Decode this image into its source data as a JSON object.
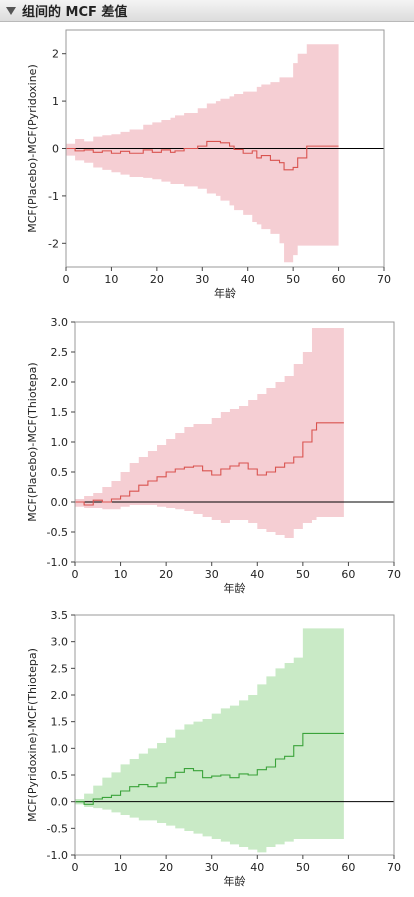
{
  "outline": {
    "title": "组间的 MCF 差值",
    "disclosure_icon": "triangle-down-icon"
  },
  "chart_data": [
    {
      "type": "line",
      "title": "",
      "xlabel": "年龄",
      "ylabel": "MCF(Placebo)-MCF(Pyridoxine)",
      "xlim": [
        0,
        70
      ],
      "ylim": [
        -2.5,
        2.5
      ],
      "xticks": [
        0,
        10,
        20,
        30,
        40,
        50,
        60,
        70
      ],
      "yticks": [
        -2,
        -1,
        0,
        1,
        2
      ],
      "grid": false,
      "reference_line": 0,
      "colors": {
        "line": "#d9534f",
        "band": "#f5ced3",
        "ref": "#000000"
      },
      "series": [
        {
          "x": [
            0,
            2,
            4,
            6,
            8,
            10,
            12,
            14,
            17,
            19,
            21,
            23,
            24,
            26,
            29,
            31,
            33,
            34,
            36,
            37,
            39,
            41,
            42,
            43,
            45,
            47,
            48,
            50,
            51,
            53,
            60
          ],
          "y": [
            0.0,
            -0.05,
            -0.03,
            -0.08,
            -0.05,
            -0.1,
            -0.06,
            -0.1,
            -0.03,
            -0.08,
            -0.03,
            -0.08,
            -0.05,
            0.0,
            0.05,
            0.15,
            0.15,
            0.12,
            0.05,
            -0.02,
            -0.1,
            -0.05,
            -0.2,
            -0.15,
            -0.25,
            -0.3,
            -0.45,
            -0.4,
            -0.2,
            0.05,
            0.05
          ],
          "lower": [
            -0.15,
            -0.25,
            -0.3,
            -0.4,
            -0.45,
            -0.5,
            -0.55,
            -0.6,
            -0.62,
            -0.65,
            -0.7,
            -0.75,
            -0.75,
            -0.8,
            -0.85,
            -0.95,
            -1.0,
            -1.1,
            -1.2,
            -1.3,
            -1.4,
            -1.55,
            -1.6,
            -1.7,
            -1.8,
            -2.0,
            -2.4,
            -2.25,
            -2.05,
            -2.05,
            -2.05
          ],
          "upper": [
            0.1,
            0.2,
            0.15,
            0.25,
            0.28,
            0.3,
            0.35,
            0.4,
            0.5,
            0.55,
            0.6,
            0.65,
            0.7,
            0.75,
            0.85,
            0.95,
            1.0,
            1.05,
            1.1,
            1.15,
            1.2,
            1.2,
            1.3,
            1.35,
            1.4,
            1.5,
            1.5,
            1.8,
            2.0,
            2.2,
            2.2
          ]
        }
      ]
    },
    {
      "type": "line",
      "title": "",
      "xlabel": "年龄",
      "ylabel": "MCF(Placebo)-MCF(Thiotepa)",
      "xlim": [
        0,
        70
      ],
      "ylim": [
        -1.0,
        3.0
      ],
      "xticks": [
        0,
        10,
        20,
        30,
        40,
        50,
        60,
        70
      ],
      "yticks": [
        -1.0,
        -0.5,
        0.0,
        0.5,
        1.0,
        1.5,
        2.0,
        2.5,
        3.0
      ],
      "grid": false,
      "reference_line": 0,
      "colors": {
        "line": "#d9534f",
        "band": "#f5ced3",
        "ref": "#000000"
      },
      "series": [
        {
          "x": [
            0,
            2,
            4,
            6,
            8,
            10,
            12,
            14,
            16,
            18,
            20,
            22,
            24,
            26,
            28,
            30,
            32,
            34,
            36,
            38,
            40,
            42,
            44,
            46,
            48,
            50,
            52,
            53,
            59
          ],
          "y": [
            0.0,
            -0.05,
            0.03,
            0.0,
            0.05,
            0.1,
            0.18,
            0.28,
            0.35,
            0.42,
            0.5,
            0.55,
            0.58,
            0.6,
            0.52,
            0.45,
            0.55,
            0.6,
            0.65,
            0.55,
            0.45,
            0.5,
            0.58,
            0.65,
            0.75,
            1.0,
            1.2,
            1.32,
            1.32
          ],
          "lower": [
            -0.08,
            -0.1,
            -0.1,
            -0.12,
            -0.12,
            -0.08,
            -0.05,
            -0.05,
            -0.05,
            -0.08,
            -0.1,
            -0.12,
            -0.15,
            -0.2,
            -0.25,
            -0.3,
            -0.35,
            -0.3,
            -0.3,
            -0.35,
            -0.45,
            -0.5,
            -0.55,
            -0.6,
            -0.45,
            -0.35,
            -0.3,
            -0.25,
            -0.25
          ],
          "upper": [
            0.05,
            0.1,
            0.15,
            0.25,
            0.35,
            0.5,
            0.65,
            0.75,
            0.85,
            0.95,
            1.05,
            1.15,
            1.25,
            1.3,
            1.3,
            1.4,
            1.5,
            1.55,
            1.6,
            1.7,
            1.8,
            1.9,
            2.0,
            2.1,
            2.3,
            2.5,
            2.9,
            2.9,
            2.9
          ]
        }
      ]
    },
    {
      "type": "line",
      "title": "",
      "xlabel": "年龄",
      "ylabel": "MCF(Pyridoxine)-MCF(Thiotepa)",
      "xlim": [
        0,
        70
      ],
      "ylim": [
        -1.0,
        3.5
      ],
      "xticks": [
        0,
        10,
        20,
        30,
        40,
        50,
        60,
        70
      ],
      "yticks": [
        -1.0,
        -0.5,
        0.0,
        0.5,
        1.0,
        1.5,
        2.0,
        2.5,
        3.0,
        3.5
      ],
      "grid": false,
      "reference_line": 0,
      "colors": {
        "line": "#3aa33a",
        "band": "#c9eac6",
        "ref": "#000000"
      },
      "series": [
        {
          "x": [
            0,
            2,
            4,
            6,
            8,
            10,
            12,
            14,
            16,
            18,
            20,
            22,
            24,
            26,
            28,
            30,
            32,
            34,
            36,
            38,
            40,
            42,
            44,
            46,
            48,
            50,
            59
          ],
          "y": [
            0.0,
            -0.05,
            0.05,
            0.08,
            0.12,
            0.2,
            0.28,
            0.32,
            0.28,
            0.35,
            0.45,
            0.55,
            0.62,
            0.58,
            0.45,
            0.48,
            0.5,
            0.45,
            0.52,
            0.5,
            0.6,
            0.65,
            0.8,
            0.85,
            1.05,
            1.28,
            1.28
          ],
          "lower": [
            -0.05,
            -0.1,
            -0.12,
            -0.15,
            -0.2,
            -0.25,
            -0.3,
            -0.35,
            -0.35,
            -0.4,
            -0.45,
            -0.5,
            -0.55,
            -0.6,
            -0.65,
            -0.7,
            -0.75,
            -0.8,
            -0.85,
            -0.9,
            -0.95,
            -0.85,
            -0.8,
            -0.75,
            -0.7,
            -0.7,
            -0.7
          ],
          "upper": [
            0.05,
            0.15,
            0.3,
            0.45,
            0.55,
            0.7,
            0.8,
            0.9,
            1.0,
            1.1,
            1.2,
            1.35,
            1.45,
            1.5,
            1.55,
            1.65,
            1.75,
            1.8,
            1.9,
            2.0,
            2.2,
            2.35,
            2.5,
            2.6,
            2.7,
            3.25,
            3.25
          ]
        }
      ]
    }
  ]
}
